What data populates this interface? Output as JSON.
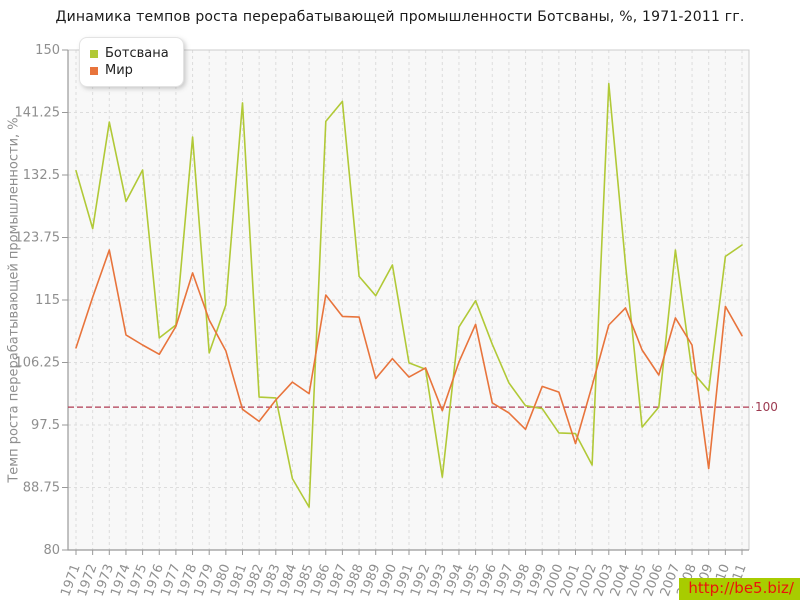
{
  "chart_data": {
    "type": "line",
    "title": "Динамика темпов роста перерабатывающей промышленности Ботсваны, %, 1971-2011 гг.",
    "ylabel": "Темп роста перерабатывающей промышленности, %",
    "xlabel": "",
    "x": [
      "1971",
      "1972",
      "1973",
      "1974",
      "1975",
      "1976",
      "1977",
      "1978",
      "1979",
      "1980",
      "1981",
      "1982",
      "1983",
      "1984",
      "1985",
      "1986",
      "1987",
      "1988",
      "1989",
      "1990",
      "1991",
      "1992",
      "1993",
      "1994",
      "1995",
      "1996",
      "1997",
      "1998",
      "1999",
      "2000",
      "2001",
      "2002",
      "2003",
      "2004",
      "2005",
      "2006",
      "2007",
      "2008",
      "2009",
      "2010",
      "2011"
    ],
    "series": [
      {
        "id": "botswana",
        "name": "Ботсвана",
        "color": "#b1c937",
        "values": [
          133.1,
          125.0,
          139.9,
          128.8,
          133.2,
          109.7,
          111.5,
          137.8,
          107.6,
          114.3,
          142.6,
          101.4,
          101.3,
          90.0,
          86.0,
          140.0,
          142.8,
          118.3,
          115.6,
          119.9,
          106.2,
          105.3,
          90.2,
          111.2,
          114.9,
          108.8,
          103.4,
          100.2,
          99.8,
          96.4,
          96.3,
          91.9,
          145.3,
          120.0,
          97.2,
          100.0,
          122.0,
          105.0,
          102.3,
          121.1,
          122.7
        ]
      },
      {
        "id": "world",
        "name": "Мир",
        "color": "#e8743c",
        "values": [
          108.3,
          115.4,
          122.0,
          110.1,
          108.7,
          107.4,
          111.3,
          118.8,
          112.2,
          107.9,
          99.7,
          98.0,
          101.0,
          103.5,
          101.9,
          115.7,
          112.7,
          112.6,
          104.0,
          106.8,
          104.2,
          105.5,
          99.5,
          106.3,
          111.6,
          100.6,
          99.2,
          96.9,
          102.9,
          102.1,
          94.9,
          103.0,
          111.5,
          113.9,
          108.0,
          104.5,
          112.5,
          108.7,
          91.4,
          114.1,
          110.0
        ]
      }
    ],
    "ylim": [
      80,
      150
    ],
    "yticks": [
      80,
      88.75,
      97.5,
      106.25,
      115,
      123.75,
      132.5,
      141.25,
      150
    ],
    "ytick_labels": [
      "80",
      "88.75",
      "97.5",
      "106.25",
      "115",
      "123.75",
      "132.5",
      "141.25",
      "150"
    ],
    "reference_line": {
      "value": 100,
      "label": "100",
      "color": "#b03a52",
      "label_color": "#9c3a50"
    },
    "grid": "dashed",
    "grid_color": "#dddddd",
    "axis_color": "#999999",
    "tick_label_color": "#8f8f8f",
    "plot_bg": "#f8f8f8",
    "legend_position": "top-left"
  },
  "watermark": {
    "text": "http://be5.biz/",
    "bg": "#a8cc00",
    "text_color": "#ea140a"
  }
}
